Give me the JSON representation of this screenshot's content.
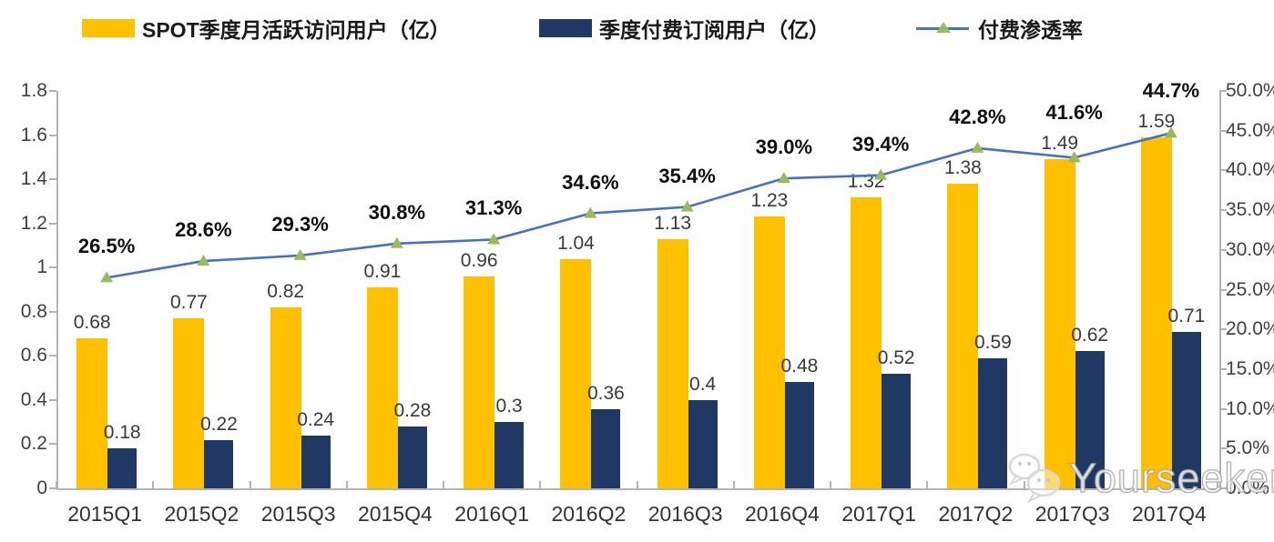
{
  "legend": [
    {
      "label": "SPOT季度月活跃访问用户（亿）",
      "swatch": "bar",
      "color": "#FFC000"
    },
    {
      "label": "季度付费订阅用户（亿）",
      "swatch": "bar",
      "color": "#1F3864"
    },
    {
      "label": "付费渗透率",
      "swatch": "line",
      "color": "#4472C4",
      "marker_color": "#9BBB59"
    }
  ],
  "watermark": {
    "text": "Yourseeker",
    "icon": "wechat-icon"
  },
  "chart_data": {
    "type": "bar+line",
    "categories": [
      "2015Q1",
      "2015Q2",
      "2015Q3",
      "2015Q4",
      "2016Q1",
      "2016Q2",
      "2016Q3",
      "2016Q4",
      "2017Q1",
      "2017Q2",
      "2017Q3",
      "2017Q4"
    ],
    "series": [
      {
        "name": "SPOT季度月活跃访问用户（亿）",
        "type": "bar",
        "axis": "left",
        "color": "#FFC000",
        "values": [
          0.68,
          0.77,
          0.82,
          0.91,
          0.96,
          1.04,
          1.13,
          1.23,
          1.32,
          1.38,
          1.49,
          1.59
        ],
        "labels": [
          "0.68",
          "0.77",
          "0.82",
          "0.91",
          "0.96",
          "1.04",
          "1.13",
          "1.23",
          "1.32",
          "1.38",
          "1.49",
          "1.59"
        ]
      },
      {
        "name": "季度付费订阅用户（亿）",
        "type": "bar",
        "axis": "left",
        "color": "#1F3864",
        "values": [
          0.18,
          0.22,
          0.24,
          0.28,
          0.3,
          0.36,
          0.4,
          0.48,
          0.52,
          0.59,
          0.62,
          0.71
        ],
        "labels": [
          "0.18",
          "0.22",
          "0.24",
          "0.28",
          "0.3",
          "0.36",
          "0.4",
          "0.48",
          "0.52",
          "0.59",
          "0.62",
          "0.71"
        ]
      },
      {
        "name": "付费渗透率",
        "type": "line",
        "axis": "right",
        "color": "#4472C4",
        "marker": "triangle",
        "marker_color": "#9BBB59",
        "values": [
          26.5,
          28.6,
          29.3,
          30.8,
          31.3,
          34.6,
          35.4,
          39.0,
          39.4,
          42.8,
          41.6,
          44.7
        ],
        "labels": [
          "26.5%",
          "28.6%",
          "29.3%",
          "30.8%",
          "31.3%",
          "34.6%",
          "35.4%",
          "39.0%",
          "39.4%",
          "42.8%",
          "41.6%",
          "44.7%"
        ]
      }
    ],
    "left_axis": {
      "min": 0,
      "max": 1.8,
      "step": 0.2,
      "ticks": [
        "0",
        "0.2",
        "0.4",
        "0.6",
        "0.8",
        "1",
        "1.2",
        "1.4",
        "1.6",
        "1.8"
      ]
    },
    "right_axis": {
      "min": 0,
      "max": 50,
      "step": 5,
      "ticks": [
        "0.0%",
        "5.0%",
        "10.0%",
        "15.0%",
        "20.0%",
        "25.0%",
        "30.0%",
        "35.0%",
        "40.0%",
        "45.0%",
        "50.0%"
      ]
    },
    "grid": false,
    "legend_position": "top"
  }
}
